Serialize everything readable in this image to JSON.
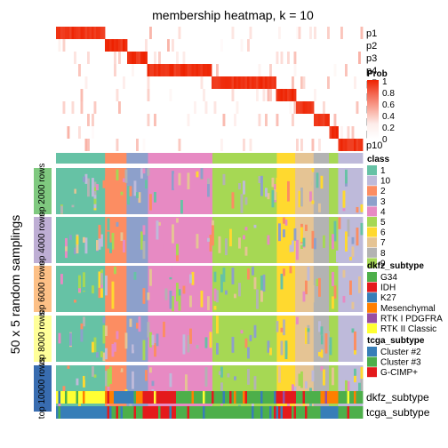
{
  "chart_data": {
    "type": "heatmap",
    "title": "membership heatmap, k = 10",
    "left_label": "50 x 5 random samplings",
    "membership_rows": [
      "p1",
      "p2",
      "p3",
      "p4",
      "p5",
      "p6",
      "p7",
      "p8",
      "p9",
      "p10"
    ],
    "membership_spans": [
      [
        0.0,
        0.16
      ],
      [
        0.16,
        0.23
      ],
      [
        0.23,
        0.3
      ],
      [
        0.3,
        0.51
      ],
      [
        0.51,
        0.72
      ],
      [
        0.72,
        0.78
      ],
      [
        0.78,
        0.84
      ],
      [
        0.84,
        0.89
      ],
      [
        0.89,
        0.92
      ],
      [
        0.92,
        1.0
      ]
    ],
    "prob_legend": {
      "title": "Prob",
      "ticks": [
        "1",
        "0.8",
        "0.6",
        "0.4",
        "0.2",
        "0"
      ],
      "colors": [
        "#EE2200",
        "#F46A55",
        "#F9AC9E",
        "#FDEDEA",
        "#FFFFFF"
      ]
    },
    "class_bar_colors": [
      "#66C2A5",
      "#FC8D62",
      "#8DA0CB",
      "#E78AC3",
      "#A6D854",
      "#FFD92F",
      "#E5C494",
      "#B3B3B3",
      "#A6D854",
      "#BEBADA"
    ],
    "class_legend": {
      "title": "class",
      "items": [
        {
          "label": "1",
          "color": "#66C2A5"
        },
        {
          "label": "10",
          "color": "#BEBADA"
        },
        {
          "label": "2",
          "color": "#FC8D62"
        },
        {
          "label": "3",
          "color": "#8DA0CB"
        },
        {
          "label": "4",
          "color": "#E78AC3"
        },
        {
          "label": "5",
          "color": "#A6D854"
        },
        {
          "label": "6",
          "color": "#FFD92F"
        },
        {
          "label": "7",
          "color": "#E5C494"
        },
        {
          "label": "8",
          "color": "#B3B3B3"
        },
        {
          "label": "9",
          "color": "#A6D854"
        }
      ]
    },
    "row_groups": [
      {
        "label": "top 2000 rows",
        "color": "#7FC97F"
      },
      {
        "label": "top 4000 rows",
        "color": "#BEAED4"
      },
      {
        "label": "top 6000 rows",
        "color": "#FDC086"
      },
      {
        "label": "top 8000 rows",
        "color": "#FFFF99"
      },
      {
        "label": "top 10000 rows",
        "color": "#386CB0"
      }
    ],
    "dkfz_legend": {
      "title": "dkfz_subtype",
      "items": [
        {
          "label": "G34",
          "color": "#4DAF4A"
        },
        {
          "label": "IDH",
          "color": "#E41A1C"
        },
        {
          "label": "K27",
          "color": "#377EB8"
        },
        {
          "label": "Mesenchymal",
          "color": "#FF7F00"
        },
        {
          "label": "RTK I PDGFRA",
          "color": "#984EA3"
        },
        {
          "label": "RTK II Classic",
          "color": "#FFFF33"
        }
      ]
    },
    "tcga_legend": {
      "title": "tcga_subtype",
      "items": [
        {
          "label": "Cluster #2",
          "color": "#377EB8"
        },
        {
          "label": "Cluster #3",
          "color": "#4DAF4A"
        },
        {
          "label": "G-CIMP+",
          "color": "#E41A1C"
        }
      ]
    },
    "annotation_labels": [
      "dkfz_subtype",
      "tcga_subtype"
    ]
  }
}
